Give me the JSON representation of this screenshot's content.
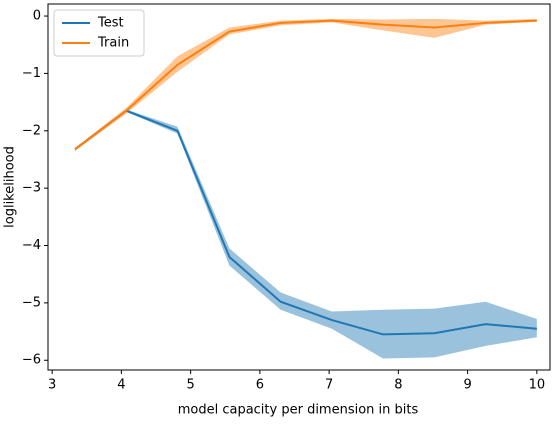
{
  "chart_data": {
    "type": "line",
    "xlabel": "model capacity per dimension in bits",
    "ylabel": "loglikelihood",
    "x": [
      3.33,
      4.07,
      4.81,
      5.56,
      6.3,
      7.04,
      7.78,
      8.52,
      9.26,
      10.0
    ],
    "series": [
      {
        "name": "Test",
        "color": "#1f77b4",
        "values": [
          -2.32,
          -1.65,
          -2.0,
          -4.2,
          -4.98,
          -5.3,
          -5.55,
          -5.53,
          -5.37,
          -5.45
        ],
        "lower": [
          -2.35,
          -1.67,
          -2.05,
          -4.35,
          -5.12,
          -5.45,
          -5.97,
          -5.95,
          -5.75,
          -5.6
        ],
        "upper": [
          -2.3,
          -1.63,
          -1.93,
          -4.05,
          -4.82,
          -5.15,
          -5.12,
          -5.1,
          -4.98,
          -5.28
        ]
      },
      {
        "name": "Train",
        "color": "#ff7f0e",
        "values": [
          -2.32,
          -1.65,
          -0.85,
          -0.27,
          -0.12,
          -0.08,
          -0.15,
          -0.2,
          -0.12,
          -0.08
        ],
        "lower": [
          -2.35,
          -1.7,
          -0.97,
          -0.32,
          -0.16,
          -0.11,
          -0.25,
          -0.38,
          -0.15,
          -0.1
        ],
        "upper": [
          -2.3,
          -1.6,
          -0.7,
          -0.2,
          -0.08,
          -0.05,
          -0.06,
          -0.05,
          -0.08,
          -0.05
        ]
      }
    ],
    "xlim": [
      2.94,
      10.19
    ],
    "ylim": [
      -6.17,
      0.21
    ],
    "xticks": [
      3,
      4,
      5,
      6,
      7,
      8,
      9,
      10
    ],
    "yticks": [
      {
        "value": -6,
        "label": "−6"
      },
      {
        "value": -5,
        "label": "−5"
      },
      {
        "value": -4,
        "label": "−4"
      },
      {
        "value": -3,
        "label": "−3"
      },
      {
        "value": -2,
        "label": "−2"
      },
      {
        "value": -1,
        "label": "−1"
      },
      0
    ],
    "legend": "upper left",
    "grid": false
  }
}
